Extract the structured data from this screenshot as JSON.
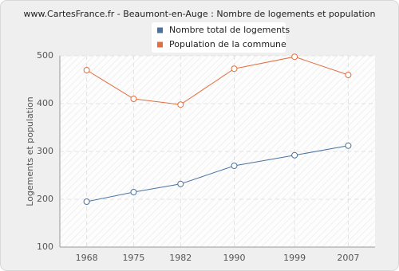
{
  "chart_data": {
    "type": "line",
    "title": "www.CartesFrance.fr - Beaumont-en-Auge : Nombre de logements et population",
    "y_label": "Logements et population",
    "x": [
      1968,
      1975,
      1982,
      1990,
      1999,
      2007
    ],
    "series": [
      {
        "name": "Nombre total de logements",
        "color": "#4a74a0",
        "values": [
          195,
          215,
          232,
          270,
          292,
          312
        ]
      },
      {
        "name": "Population de la commune",
        "color": "#e07040",
        "values": [
          470,
          410,
          398,
          473,
          498,
          460
        ]
      }
    ],
    "xlim": [
      1964,
      2011
    ],
    "xticks": [
      1968,
      1975,
      1982,
      1990,
      1999,
      2007
    ],
    "ylim": [
      100,
      500
    ],
    "yticks": [
      100,
      200,
      300,
      400,
      500
    ],
    "grid": true
  }
}
